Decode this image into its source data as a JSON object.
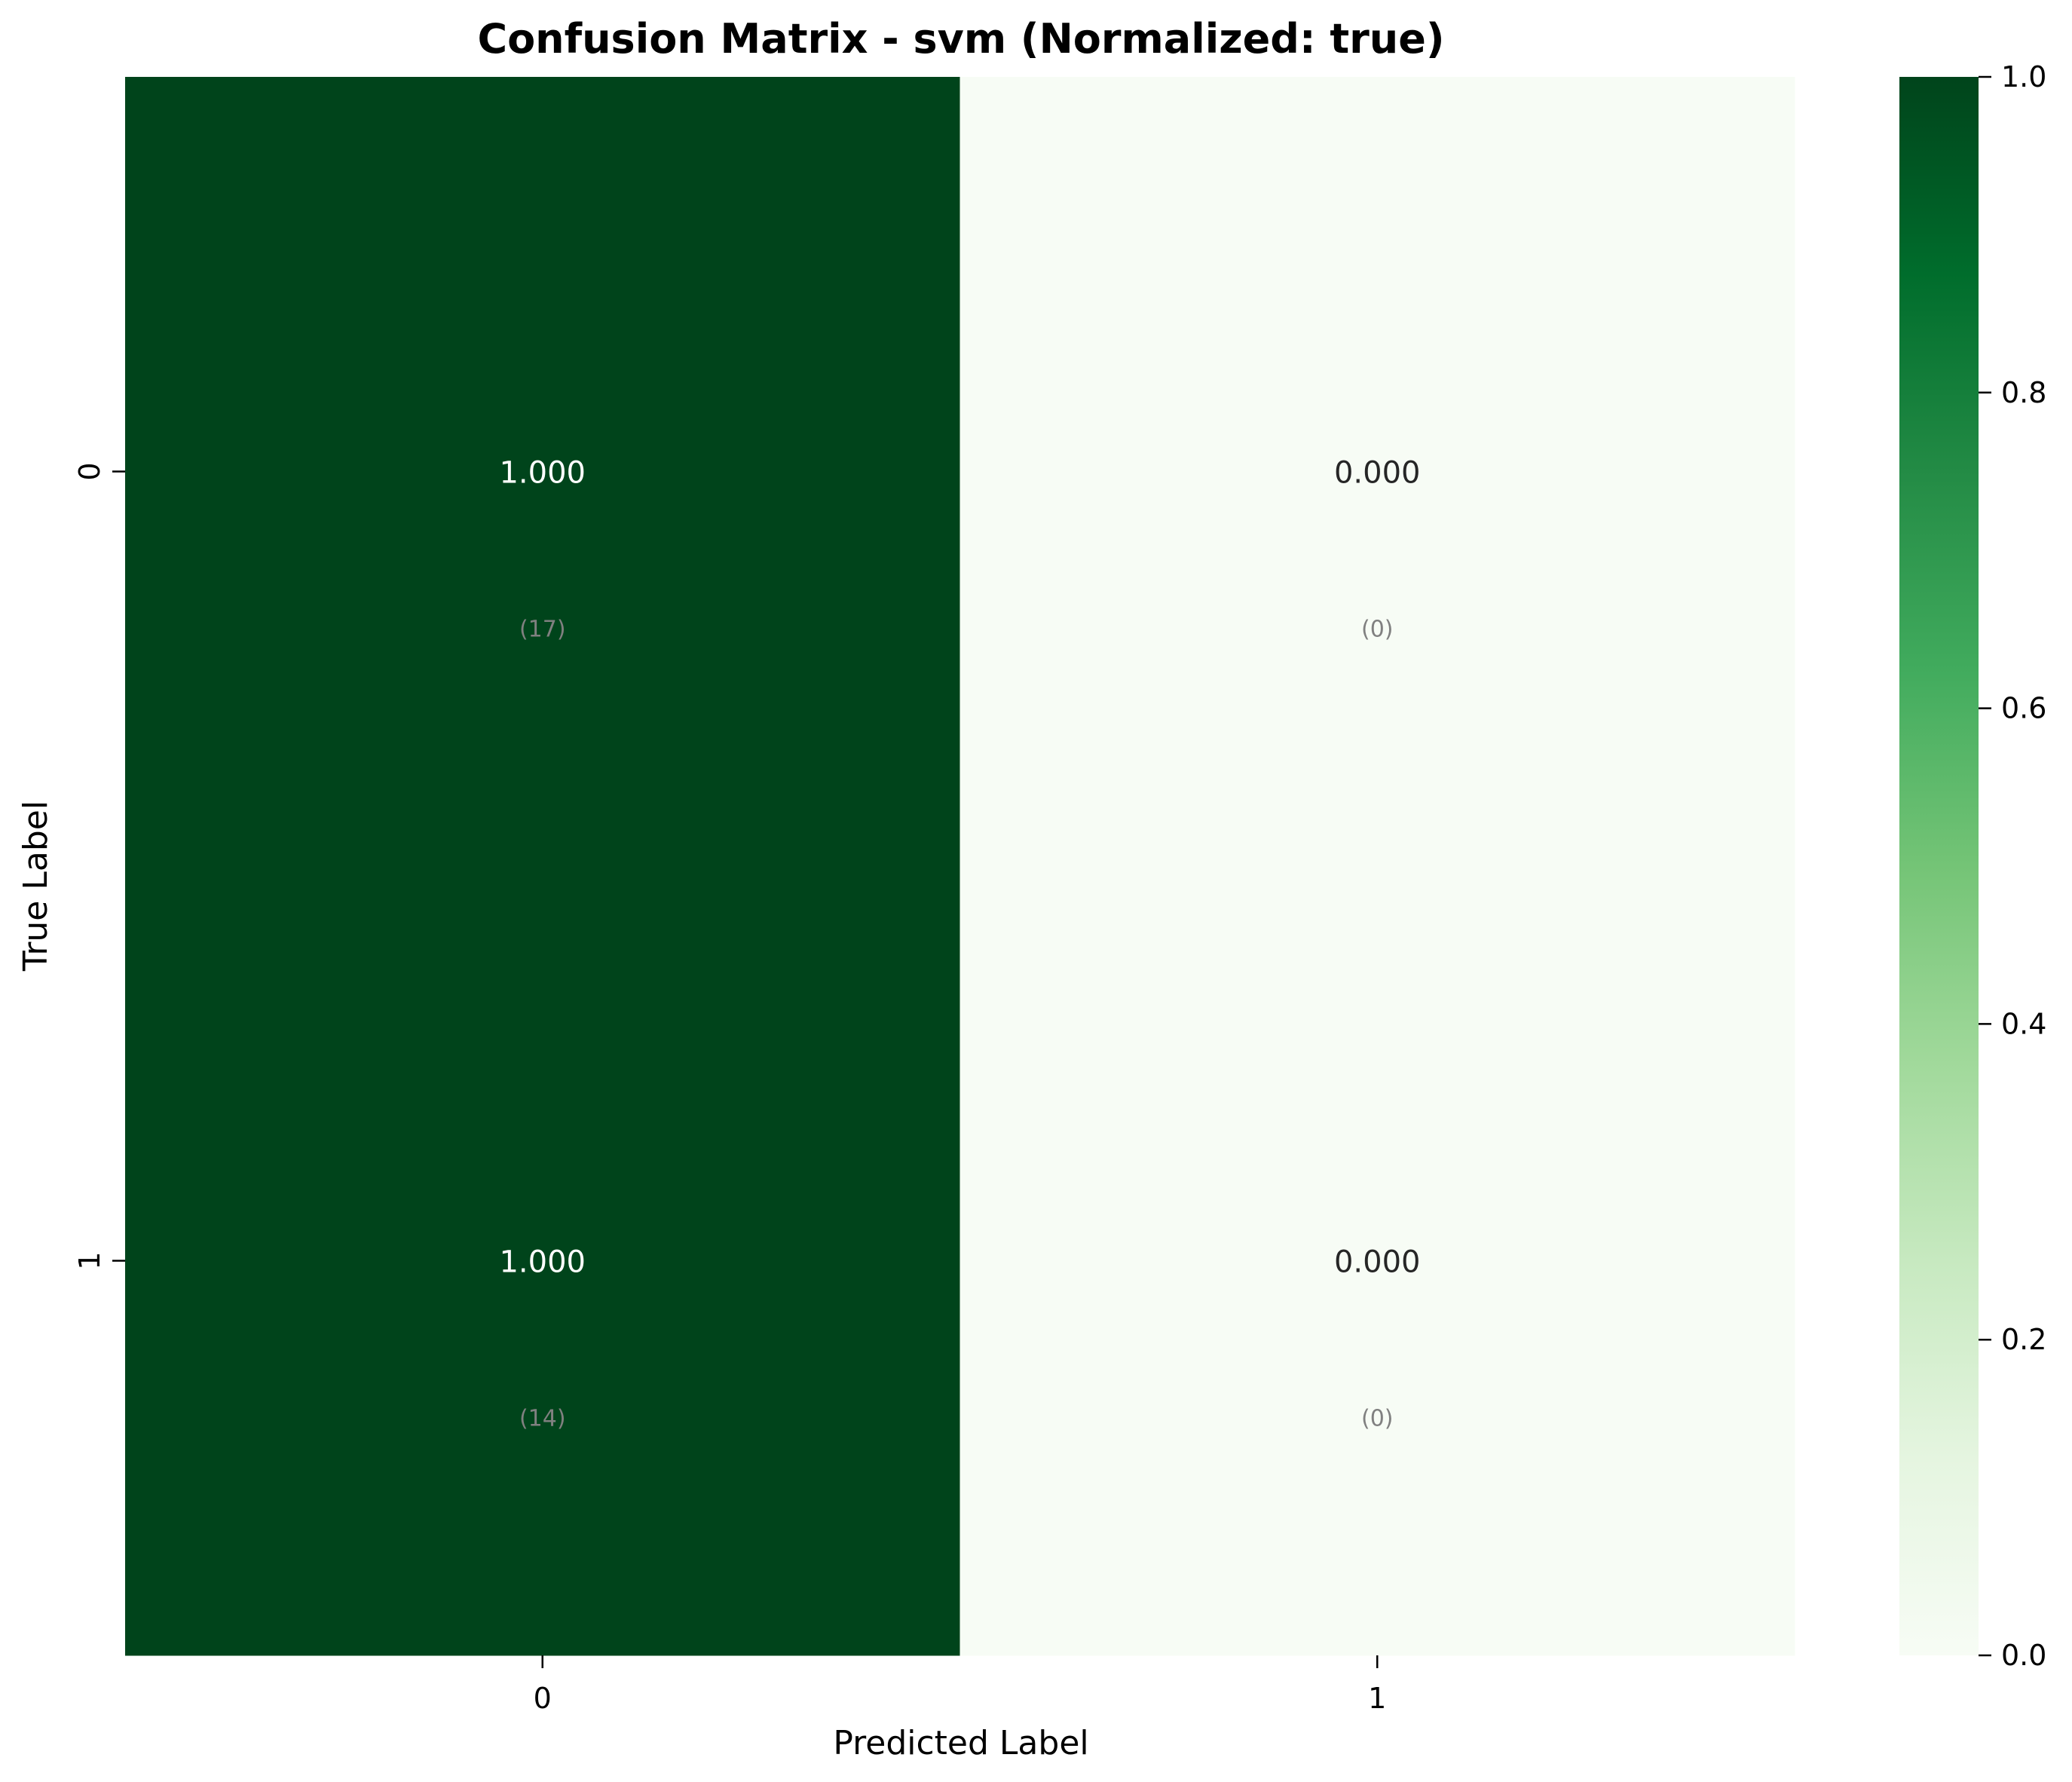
{
  "chart_data": {
    "type": "heatmap",
    "title": "Confusion Matrix - svm (Normalized: true)",
    "xlabel": "Predicted Label",
    "ylabel": "True Label",
    "x_categories": [
      "0",
      "1"
    ],
    "y_categories": [
      "0",
      "1"
    ],
    "cells": [
      [
        {
          "value": 1.0,
          "label": "1.000",
          "count": "(17)"
        },
        {
          "value": 0.0,
          "label": "0.000",
          "count": "(0)"
        }
      ],
      [
        {
          "value": 1.0,
          "label": "1.000",
          "count": "(14)"
        },
        {
          "value": 0.0,
          "label": "0.000",
          "count": "(0)"
        }
      ]
    ],
    "colorbar": {
      "range": [
        0.0,
        1.0
      ],
      "ticks": [
        "0.0",
        "0.2",
        "0.4",
        "0.6",
        "0.8",
        "1.0"
      ],
      "colormap": "Greens",
      "colors": [
        "#f7fcf5",
        "#e5f5e0",
        "#c7e9c0",
        "#a1d99b",
        "#74c476",
        "#41ab5d",
        "#238b45",
        "#006d2c",
        "#00441b"
      ]
    }
  }
}
